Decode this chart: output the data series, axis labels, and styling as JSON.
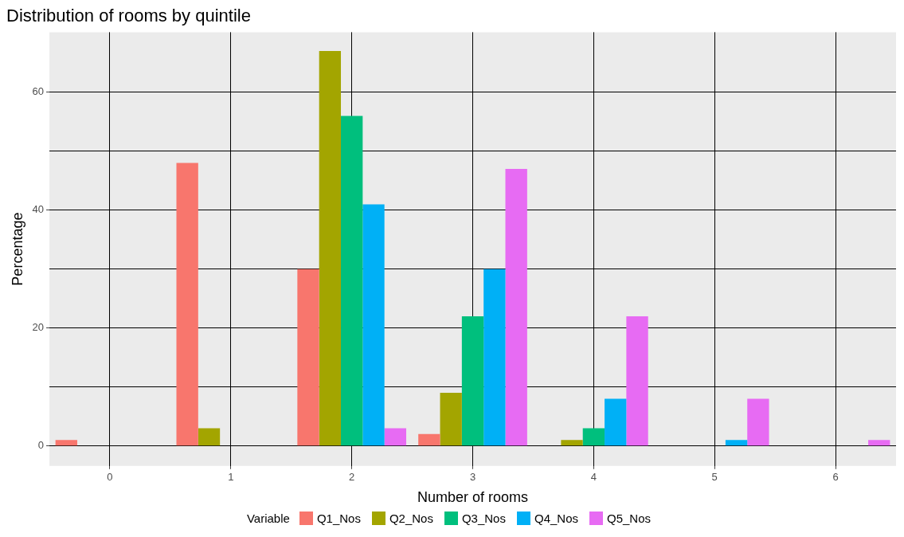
{
  "chart_data": {
    "type": "bar",
    "title": "Distribution of rooms by quintile",
    "xlabel": "Number of rooms",
    "ylabel": "Percentage",
    "legend_title": "Variable",
    "categories": [
      "0",
      "1",
      "2",
      "3",
      "4",
      "5",
      "6"
    ],
    "series": [
      {
        "name": "Q1_Nos",
        "color": "#f8766d",
        "values": [
          1,
          48,
          30,
          2,
          0,
          0,
          0
        ]
      },
      {
        "name": "Q2_Nos",
        "color": "#a3a500",
        "values": [
          0,
          3,
          67,
          9,
          1,
          0,
          0
        ]
      },
      {
        "name": "Q3_Nos",
        "color": "#00bf7d",
        "values": [
          0,
          0,
          56,
          22,
          3,
          0,
          0
        ]
      },
      {
        "name": "Q4_Nos",
        "color": "#00b0f6",
        "values": [
          0,
          0,
          41,
          30,
          8,
          1,
          0
        ]
      },
      {
        "name": "Q5_Nos",
        "color": "#e76bf3",
        "values": [
          0,
          0,
          3,
          47,
          22,
          8,
          1
        ]
      }
    ],
    "ylim": [
      -3.4,
      70.2
    ],
    "yticks": [
      0,
      {
        "value": 10,
        "label": null
      },
      20,
      {
        "value": 30,
        "label": null
      },
      40,
      {
        "value": 50,
        "label": null
      },
      60
    ],
    "grid": true,
    "legend": "bottom"
  }
}
